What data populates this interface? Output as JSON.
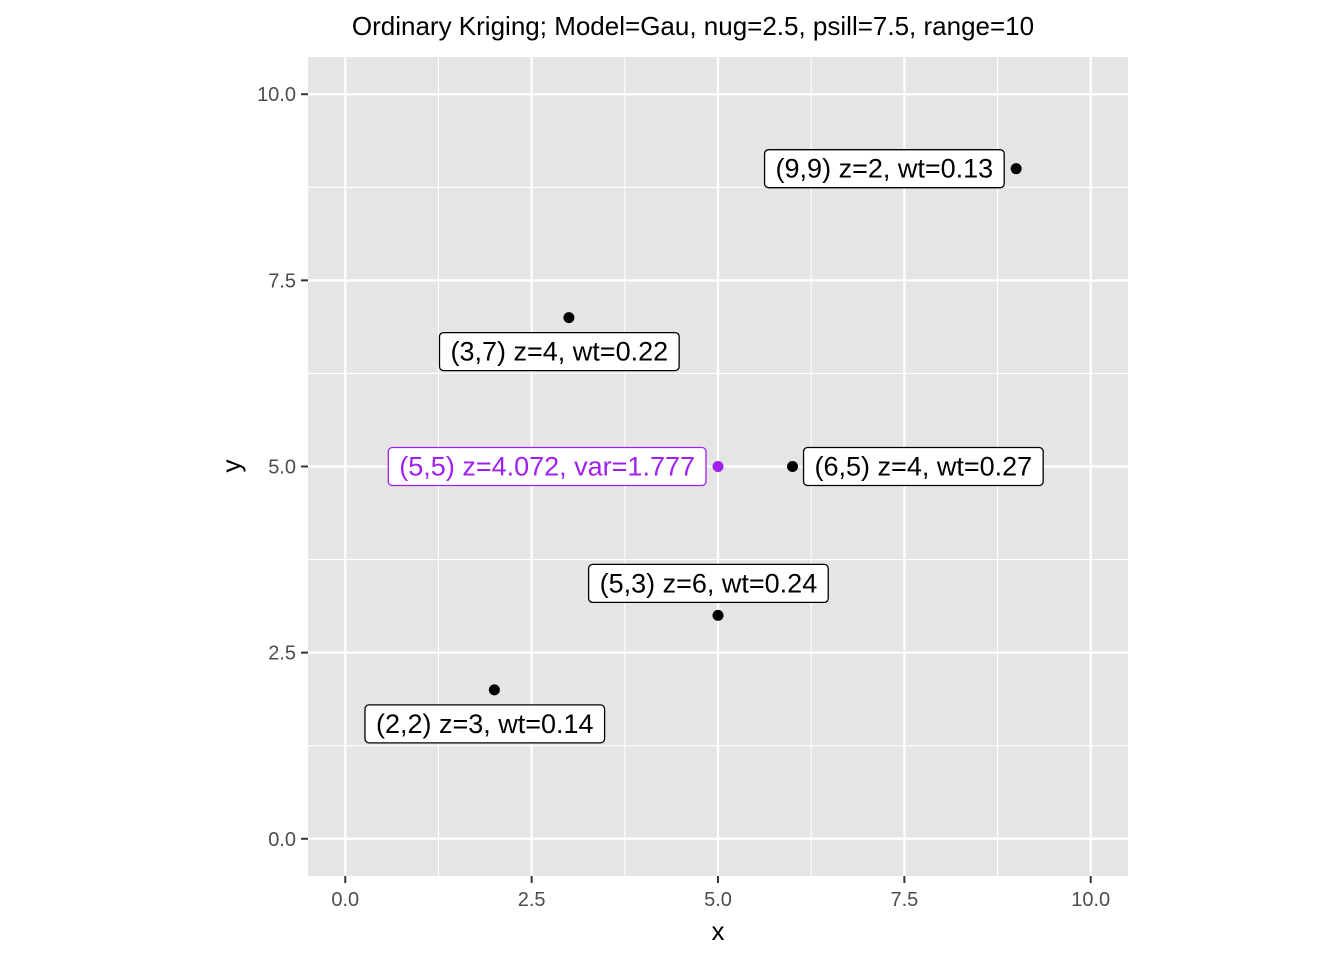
{
  "chart_data": {
    "type": "scatter",
    "title": "Ordinary Kriging; Model=Gau, nug=2.5, psill=7.5, range=10",
    "xlabel": "x",
    "ylabel": "y",
    "xlim": [
      -0.5,
      10.5
    ],
    "ylim": [
      -0.5,
      10.5
    ],
    "x_ticks": [
      {
        "value": 0,
        "label": "0.0"
      },
      {
        "value": 2.5,
        "label": "2.5"
      },
      {
        "value": 5,
        "label": "5.0"
      },
      {
        "value": 7.5,
        "label": "7.5"
      },
      {
        "value": 10,
        "label": "10.0"
      }
    ],
    "y_ticks": [
      {
        "value": 0,
        "label": "0.0"
      },
      {
        "value": 2.5,
        "label": "2.5"
      },
      {
        "value": 5,
        "label": "5.0"
      },
      {
        "value": 7.5,
        "label": "7.5"
      },
      {
        "value": 10,
        "label": "10.0"
      }
    ],
    "grid": true,
    "colors": {
      "panel": "#e5e5e5",
      "grid": "#ffffff",
      "sample": "#000000",
      "estimate": "#a020f0"
    },
    "points": [
      {
        "x": 9,
        "y": 9,
        "z": 2,
        "wt": 0.13,
        "label": "(9,9) z=2, wt=0.13",
        "kind": "sample",
        "label_side": "left"
      },
      {
        "x": 3,
        "y": 7,
        "z": 4,
        "wt": 0.22,
        "label": "(3,7) z=4, wt=0.22",
        "kind": "sample",
        "label_side": "below"
      },
      {
        "x": 6,
        "y": 5,
        "z": 4,
        "wt": 0.27,
        "label": "(6,5) z=4, wt=0.27",
        "kind": "sample",
        "label_side": "right"
      },
      {
        "x": 5,
        "y": 3,
        "z": 6,
        "wt": 0.24,
        "label": "(5,3) z=6, wt=0.24",
        "kind": "sample",
        "label_side": "above"
      },
      {
        "x": 2,
        "y": 2,
        "z": 3,
        "wt": 0.14,
        "label": "(2,2) z=3, wt=0.14",
        "kind": "sample",
        "label_side": "below"
      },
      {
        "x": 5,
        "y": 5,
        "z": 4.072,
        "var": 1.777,
        "label": "(5,5) z=4.072, var=1.777",
        "kind": "estimate",
        "label_side": "left"
      }
    ]
  }
}
